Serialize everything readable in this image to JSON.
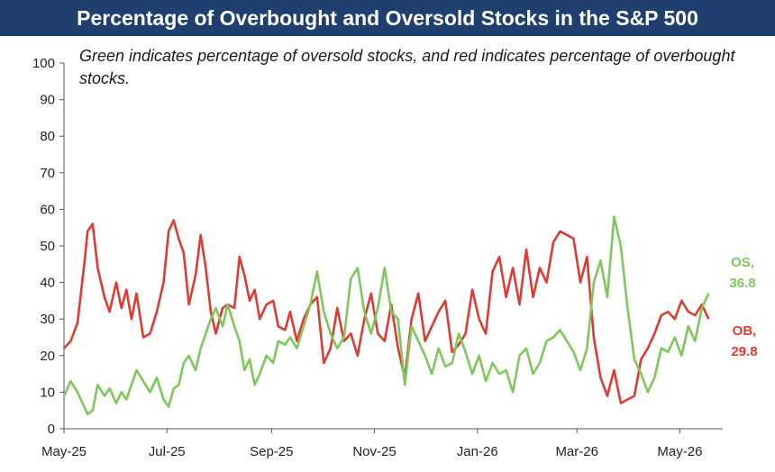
{
  "title": "Percentage of Overbought and Oversold Stocks in the S&P 500",
  "subtitle": "Green indicates percentage of oversold stocks, and red indicates percentage of overbought stocks.",
  "colors": {
    "title_bg": "#1f3f6e",
    "oversold": "#7ec85b",
    "overbought": "#e03b32"
  },
  "chart_data": {
    "type": "line",
    "title": "Percentage of Overbought and Oversold Stocks in the S&P 500",
    "x_tick_labels": [
      "May-25",
      "Jul-25",
      "Sep-25",
      "Nov-25",
      "Jan-26",
      "Mar-26",
      "May-26"
    ],
    "y_ticks": [
      0,
      10,
      20,
      30,
      40,
      50,
      60,
      70,
      80,
      90,
      100
    ],
    "ylim": [
      0,
      100
    ],
    "x_range": [
      "2025-05-01",
      "2026-05-20"
    ],
    "grid": false,
    "series": [
      {
        "name": "OB",
        "color": "#e03b32",
        "end_label": "29.8",
        "x": [
          "2025-05-01",
          "2025-05-05",
          "2025-05-09",
          "2025-05-13",
          "2025-05-15",
          "2025-05-18",
          "2025-05-21",
          "2025-05-25",
          "2025-05-28",
          "2025-06-01",
          "2025-06-04",
          "2025-06-07",
          "2025-06-10",
          "2025-06-13",
          "2025-06-17",
          "2025-06-21",
          "2025-06-25",
          "2025-06-29",
          "2025-07-02",
          "2025-07-05",
          "2025-07-08",
          "2025-07-11",
          "2025-07-14",
          "2025-07-18",
          "2025-07-21",
          "2025-07-24",
          "2025-07-27",
          "2025-07-30",
          "2025-08-03",
          "2025-08-06",
          "2025-08-10",
          "2025-08-13",
          "2025-08-16",
          "2025-08-19",
          "2025-08-22",
          "2025-08-25",
          "2025-08-29",
          "2025-09-02",
          "2025-09-05",
          "2025-09-09",
          "2025-09-12",
          "2025-09-16",
          "2025-09-20",
          "2025-09-24",
          "2025-09-28",
          "2025-10-02",
          "2025-10-06",
          "2025-10-10",
          "2025-10-14",
          "2025-10-18",
          "2025-10-22",
          "2025-10-26",
          "2025-10-30",
          "2025-11-03",
          "2025-11-07",
          "2025-11-11",
          "2025-11-15",
          "2025-11-19",
          "2025-11-23",
          "2025-11-27",
          "2025-12-01",
          "2025-12-05",
          "2025-12-09",
          "2025-12-13",
          "2025-12-17",
          "2025-12-21",
          "2025-12-25",
          "2025-12-29",
          "2026-01-02",
          "2026-01-06",
          "2026-01-10",
          "2026-01-14",
          "2026-01-18",
          "2026-01-22",
          "2026-01-26",
          "2026-01-30",
          "2026-02-03",
          "2026-02-07",
          "2026-02-11",
          "2026-02-15",
          "2026-02-19",
          "2026-02-23",
          "2026-02-27",
          "2026-03-03",
          "2026-03-07",
          "2026-03-11",
          "2026-03-15",
          "2026-03-19",
          "2026-03-23",
          "2026-03-27",
          "2026-03-31",
          "2026-04-04",
          "2026-04-08",
          "2026-04-12",
          "2026-04-16",
          "2026-04-20",
          "2026-04-24",
          "2026-04-28",
          "2026-05-02",
          "2026-05-06",
          "2026-05-10",
          "2026-05-14",
          "2026-05-18"
        ],
        "values": [
          22,
          24,
          29,
          45,
          54,
          56,
          44,
          36,
          32,
          40,
          33,
          38,
          30,
          37,
          25,
          26,
          32,
          40,
          54,
          57,
          52,
          48,
          34,
          42,
          53,
          44,
          32,
          26,
          33,
          34,
          33,
          47,
          42,
          35,
          38,
          30,
          34,
          35,
          28,
          27,
          32,
          24,
          30,
          34,
          36,
          18,
          22,
          33,
          24,
          26,
          20,
          30,
          37,
          26,
          24,
          34,
          22,
          14,
          30,
          37,
          24,
          28,
          32,
          35,
          21,
          23,
          26,
          38,
          30,
          26,
          43,
          47,
          36,
          44,
          34,
          49,
          36,
          44,
          40,
          51,
          54,
          53,
          52,
          40,
          47,
          25,
          14,
          9,
          16,
          7,
          8,
          9,
          19,
          22,
          26,
          31,
          32,
          30,
          35,
          32,
          31,
          34,
          30
        ]
      },
      {
        "name": "OS",
        "color": "#7ec85b",
        "end_label": "36.8",
        "x": [
          "2025-05-01",
          "2025-05-05",
          "2025-05-09",
          "2025-05-13",
          "2025-05-15",
          "2025-05-18",
          "2025-05-21",
          "2025-05-25",
          "2025-05-28",
          "2025-06-01",
          "2025-06-04",
          "2025-06-07",
          "2025-06-10",
          "2025-06-13",
          "2025-06-17",
          "2025-06-21",
          "2025-06-25",
          "2025-06-29",
          "2025-07-02",
          "2025-07-05",
          "2025-07-08",
          "2025-07-11",
          "2025-07-14",
          "2025-07-18",
          "2025-07-21",
          "2025-07-24",
          "2025-07-27",
          "2025-07-30",
          "2025-08-03",
          "2025-08-06",
          "2025-08-10",
          "2025-08-13",
          "2025-08-16",
          "2025-08-19",
          "2025-08-22",
          "2025-08-25",
          "2025-08-29",
          "2025-09-02",
          "2025-09-05",
          "2025-09-09",
          "2025-09-12",
          "2025-09-16",
          "2025-09-20",
          "2025-09-24",
          "2025-09-28",
          "2025-10-02",
          "2025-10-06",
          "2025-10-10",
          "2025-10-14",
          "2025-10-18",
          "2025-10-22",
          "2025-10-26",
          "2025-10-30",
          "2025-11-03",
          "2025-11-07",
          "2025-11-11",
          "2025-11-15",
          "2025-11-19",
          "2025-11-23",
          "2025-11-27",
          "2025-12-01",
          "2025-12-05",
          "2025-12-09",
          "2025-12-13",
          "2025-12-17",
          "2025-12-21",
          "2025-12-25",
          "2025-12-29",
          "2026-01-02",
          "2026-01-06",
          "2026-01-10",
          "2026-01-14",
          "2026-01-18",
          "2026-01-22",
          "2026-01-26",
          "2026-01-30",
          "2026-02-03",
          "2026-02-07",
          "2026-02-11",
          "2026-02-15",
          "2026-02-19",
          "2026-02-23",
          "2026-02-27",
          "2026-03-03",
          "2026-03-07",
          "2026-03-11",
          "2026-03-15",
          "2026-03-19",
          "2026-03-23",
          "2026-03-27",
          "2026-03-31",
          "2026-04-04",
          "2026-04-08",
          "2026-04-12",
          "2026-04-16",
          "2026-04-20",
          "2026-04-24",
          "2026-04-28",
          "2026-05-02",
          "2026-05-06",
          "2026-05-10",
          "2026-05-14",
          "2026-05-18"
        ],
        "values": [
          9,
          13,
          10,
          6,
          4,
          5,
          12,
          9,
          11,
          7,
          10,
          8,
          12,
          16,
          13,
          10,
          14,
          8,
          6,
          11,
          12,
          18,
          20,
          16,
          22,
          26,
          30,
          33,
          28,
          34,
          28,
          24,
          16,
          19,
          12,
          15,
          20,
          18,
          24,
          23,
          25,
          22,
          28,
          34,
          43,
          32,
          26,
          22,
          25,
          41,
          44,
          32,
          26,
          33,
          44,
          32,
          30,
          12,
          28,
          24,
          20,
          15,
          22,
          17,
          18,
          26,
          21,
          15,
          20,
          13,
          18,
          15,
          16,
          10,
          20,
          22,
          15,
          18,
          24,
          25,
          27,
          24,
          21,
          16,
          22,
          40,
          46,
          36,
          58,
          50,
          33,
          19,
          15,
          10,
          14,
          22,
          21,
          25,
          20,
          28,
          24,
          33,
          37
        ]
      }
    ]
  }
}
